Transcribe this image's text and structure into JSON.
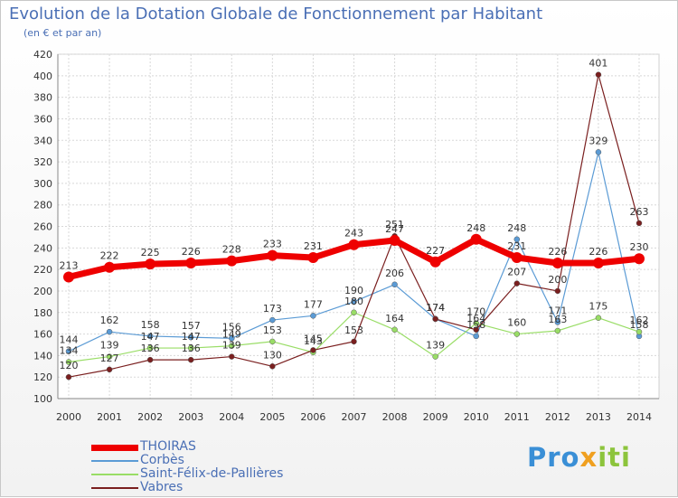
{
  "title": "Evolution de la Dotation Globale de Fonctionnement par Habitant",
  "subtitle": "(en € et par an)",
  "logo": {
    "part1": "Pro",
    "part2": "x",
    "part3": "iti"
  },
  "chart_data": {
    "type": "line",
    "categories": [
      "2000",
      "2001",
      "2002",
      "2003",
      "2004",
      "2005",
      "2006",
      "2007",
      "2008",
      "2009",
      "2010",
      "2011",
      "2012",
      "2013",
      "2014"
    ],
    "ylim": [
      100,
      420
    ],
    "yticks": [
      100,
      120,
      140,
      160,
      180,
      200,
      220,
      240,
      260,
      280,
      300,
      320,
      340,
      360,
      380,
      400,
      420
    ],
    "grid": true,
    "legend_position": "bottom-left",
    "series": [
      {
        "name": "THOIRAS",
        "color": "#ee0000",
        "values": [
          213,
          222,
          225,
          226,
          228,
          233,
          231,
          243,
          247,
          227,
          248,
          231,
          226,
          226,
          230
        ]
      },
      {
        "name": "Corbès",
        "color": "#5b9bd5",
        "values": [
          144,
          162,
          158,
          157,
          156,
          173,
          177,
          190,
          206,
          174,
          158,
          248,
          171,
          329,
          158
        ]
      },
      {
        "name": "Saint-Félix-de-Pallières",
        "color": "#99dd66",
        "values": [
          134,
          139,
          147,
          147,
          149,
          153,
          143,
          180,
          164,
          139,
          170,
          160,
          163,
          175,
          162
        ]
      },
      {
        "name": "Vabres",
        "color": "#7a1f1f",
        "values": [
          120,
          127,
          136,
          136,
          139,
          130,
          145,
          153,
          251,
          174,
          164,
          207,
          200,
          401,
          263
        ]
      }
    ]
  }
}
